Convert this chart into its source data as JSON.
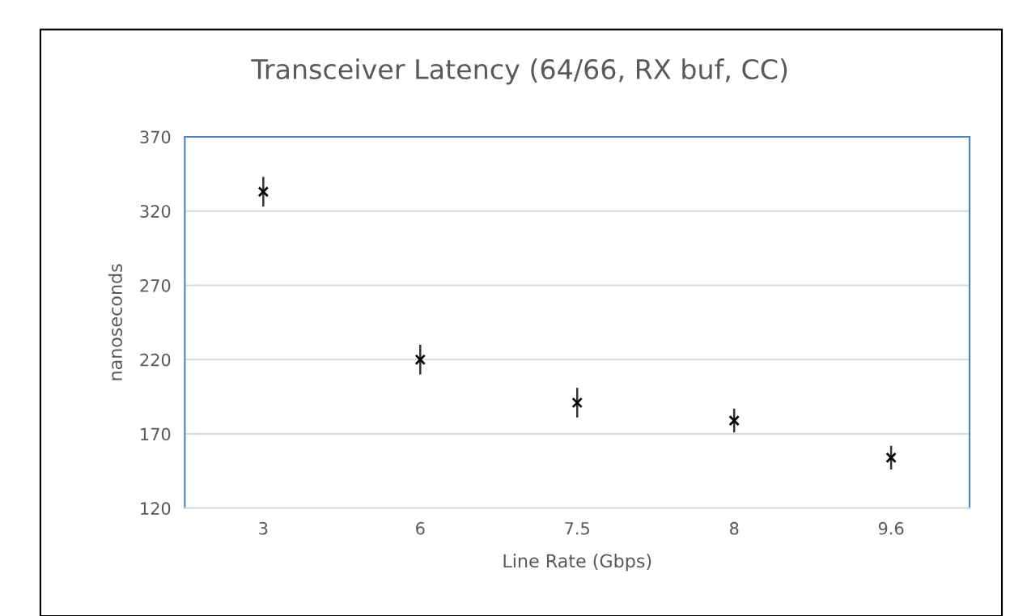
{
  "chart_data": {
    "type": "scatter",
    "title": "Transceiver Latency (64/66, RX buf, CC)",
    "xlabel": "Line Rate (Gbps)",
    "ylabel": "nanoseconds",
    "categories": [
      "3",
      "6",
      "7.5",
      "8",
      "9.6"
    ],
    "series": [
      {
        "color": "#000000",
        "values": [
          333,
          220,
          191,
          179,
          154
        ],
        "errors": [
          10,
          10,
          10,
          8,
          8
        ]
      }
    ],
    "ylim": [
      120,
      370
    ],
    "yticks": [
      120,
      170,
      220,
      270,
      320,
      370
    ],
    "grid": "y",
    "marker": "cross"
  }
}
